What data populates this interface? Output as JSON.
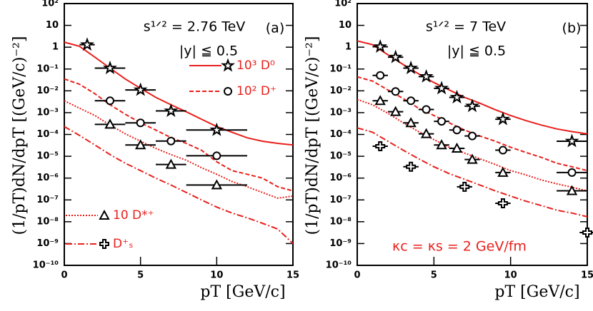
{
  "chart_data": [
    {
      "type": "line",
      "ylog": true,
      "xlabel": "pT [GeV/c]",
      "ylabel": "(1/pT)dN/dpT [(GeV/c)⁻²]",
      "annotations": [
        "s¹ᐟ² = 2.76 TeV",
        "|y| ≦ 0.5",
        "(a)"
      ],
      "xlim": [
        0,
        15
      ],
      "xticks": [
        0,
        5,
        10,
        15
      ],
      "ylim": [
        1e-10,
        100
      ],
      "yticks": [
        {
          "value": 100,
          "label": "10²"
        },
        10,
        1,
        {
          "value": 0.1,
          "label": "10⁻¹"
        },
        {
          "value": 0.01,
          "label": "10⁻²"
        },
        {
          "value": 0.001,
          "label": "10⁻³"
        },
        {
          "value": 0.0001,
          "label": "10⁻⁴"
        },
        {
          "value": 1e-05,
          "label": "10⁻⁵"
        },
        {
          "value": 1e-06,
          "label": "10⁻⁶"
        },
        {
          "value": 1e-07,
          "label": "10⁻⁷"
        },
        {
          "value": 1e-08,
          "label": "10⁻⁸"
        },
        {
          "value": 1e-09,
          "label": "10⁻⁹"
        },
        {
          "value": 1e-10,
          "label": "10⁻¹⁰"
        }
      ],
      "series": [
        {
          "name": "10³ D⁰",
          "color": "#e8201c",
          "marker_color": "#000000",
          "style": "solid",
          "marker": "star",
          "x": [
            0,
            1,
            2,
            3,
            4,
            5,
            6,
            7,
            8,
            9,
            10,
            11,
            12,
            13,
            14,
            15
          ],
          "values": [
            1.7,
            1.1,
            0.35,
            0.11,
            0.035,
            0.013,
            0.005,
            0.0023,
            0.0011,
            0.0005,
            0.00023,
            0.000126,
            7e-05,
            4.9e-05,
            3.9e-05,
            3.3e-05
          ],
          "points_x": [
            1.5,
            3,
            5,
            7,
            10
          ],
          "points_values": [
            1.3,
            0.11,
            0.011,
            0.0012,
            0.00016
          ],
          "points_xerr": [
            0.5,
            1,
            1,
            1,
            2
          ]
        },
        {
          "name": "10² D⁺",
          "color": "#e8201c",
          "marker_color": "#000000",
          "style": "dashed",
          "marker": "circle",
          "x": [
            0,
            1,
            2,
            3,
            4,
            5,
            6,
            7,
            8,
            9,
            10,
            11,
            12,
            13,
            14,
            15
          ],
          "values": [
            0.035,
            0.02,
            0.0074,
            0.0023,
            0.00085,
            0.00034,
            0.00016,
            7.2e-05,
            3.9e-05,
            1.9e-05,
            5.6e-06,
            2.2e-06,
            1.5e-06,
            1e-06,
            4e-07,
            2.6e-07
          ],
          "points_x": [
            3,
            5,
            7,
            10
          ],
          "points_values": [
            0.0035,
            0.00034,
            5e-05,
            1.05e-05
          ],
          "points_xerr": [
            1,
            1,
            1,
            2
          ]
        },
        {
          "name": "10 D*⁺",
          "color": "#e8201c",
          "marker_color": "#000000",
          "style": "dotted",
          "marker": "triangle",
          "x": [
            0,
            1,
            2,
            3,
            4,
            5,
            6,
            7,
            8,
            9,
            10,
            11,
            12,
            13,
            14,
            15
          ],
          "values": [
            0.0035,
            0.0016,
            0.00074,
            0.00027,
            0.000107,
            4.9e-05,
            2.3e-05,
            1.2e-05,
            6.6e-06,
            3e-06,
            1.5e-06,
            7e-07,
            4e-07,
            2.2e-07,
            1.2e-07,
            1.5e-07
          ],
          "points_x": [
            3,
            5,
            7,
            10
          ],
          "points_values": [
            0.00029,
            3.3e-05,
            4.2e-06,
            4.8e-07
          ],
          "points_xerr": [
            1,
            1,
            1,
            2
          ]
        },
        {
          "name": "D⁺ₛ",
          "color": "#e8201c",
          "marker_color": "#000000",
          "style": "dashdot",
          "marker": "cross",
          "x": [
            0,
            1,
            2,
            3,
            4,
            5,
            6,
            7,
            8,
            9,
            10,
            11,
            12,
            13,
            14,
            15
          ],
          "values": [
            0.00023,
            9e-05,
            3.3e-05,
            1.2e-05,
            4.8e-06,
            2.2e-06,
            1e-06,
            4.8e-07,
            2.2e-07,
            1e-07,
            4.7e-08,
            2.5e-08,
            1.5e-08,
            8.5e-09,
            4.6e-09,
            1e-09
          ],
          "points_x": [],
          "points_values": [],
          "points_xerr": []
        }
      ]
    },
    {
      "type": "line",
      "ylog": true,
      "xlabel": "pT [GeV/c]",
      "ylabel": "(1/pT)dN/dpT [(GeV/c)⁻²]",
      "annotations": [
        "s¹ᐟ² = 7 TeV",
        "|y| ≦ 0.5",
        "(b)",
        "κc = κs = 2 GeV/fm"
      ],
      "xlim": [
        0,
        15
      ],
      "xticks": [
        0,
        5,
        10,
        15
      ],
      "ylim": [
        1e-10,
        100
      ],
      "yticks": [
        {
          "value": 100,
          "label": "10²"
        },
        10,
        1,
        {
          "value": 0.1,
          "label": "10⁻¹"
        },
        {
          "value": 0.01,
          "label": "10⁻²"
        },
        {
          "value": 0.001,
          "label": "10⁻³"
        },
        {
          "value": 0.0001,
          "label": "10⁻⁴"
        },
        {
          "value": 1e-05,
          "label": "10⁻⁵"
        },
        {
          "value": 1e-06,
          "label": "10⁻⁶"
        },
        {
          "value": 1e-07,
          "label": "10⁻⁷"
        },
        {
          "value": 1e-08,
          "label": "10⁻⁸"
        },
        {
          "value": 1e-09,
          "label": "10⁻⁹"
        },
        {
          "value": 1e-10,
          "label": "10⁻¹⁰"
        }
      ],
      "series": [
        {
          "color": "#e8201c",
          "marker_color": "#000000",
          "style": "solid",
          "marker": "star",
          "x": [
            0,
            1,
            2,
            3,
            4,
            5,
            6,
            7,
            8,
            9,
            10,
            11,
            12,
            13,
            14,
            15
          ],
          "values": [
            1.95,
            1.3,
            0.45,
            0.16,
            0.06,
            0.024,
            0.011,
            0.005,
            0.0027,
            0.00136,
            0.00074,
            0.00043,
            0.00027,
            0.00018,
            0.000135,
            0.000107
          ],
          "points_x": [
            1.5,
            2.5,
            3.5,
            4.5,
            5.5,
            6.5,
            7.5,
            9.5,
            14
          ],
          "points_values": [
            1.05,
            0.35,
            0.11,
            0.045,
            0.013,
            0.005,
            0.002,
            0.0005,
            4.9e-05
          ],
          "points_xerr": [
            0.5,
            0.5,
            0.5,
            0.5,
            0.5,
            0.5,
            0.5,
            0.5,
            1
          ]
        },
        {
          "color": "#e8201c",
          "marker_color": "#000000",
          "style": "dashed",
          "marker": "circle",
          "x": [
            0,
            1,
            2,
            3,
            4,
            5,
            6,
            7,
            8,
            9,
            10,
            11,
            12,
            13,
            14,
            15
          ],
          "values": [
            0.044,
            0.028,
            0.011,
            0.0044,
            0.0016,
            0.00074,
            0.00034,
            0.00016,
            8.5e-05,
            4.9e-05,
            2.6e-05,
            1.5e-05,
            8.9e-06,
            4.8e-06,
            3.3e-06,
            2.2e-06
          ],
          "points_x": [
            1.5,
            2.5,
            3.5,
            4.5,
            5.5,
            6.5,
            7.5,
            9.5,
            14
          ],
          "points_values": [
            0.051,
            0.0093,
            0.0035,
            0.0014,
            0.0004,
            0.00016,
            8.5e-05,
            1.9e-05,
            1.8e-06
          ],
          "points_xerr": [
            0.5,
            0.5,
            0.5,
            0.5,
            0.5,
            0.5,
            0.5,
            0.5,
            1
          ]
        },
        {
          "color": "#e8201c",
          "marker_color": "#000000",
          "style": "dotted",
          "marker": "triangle",
          "x": [
            0,
            1,
            2,
            3,
            4,
            5,
            6,
            7,
            8,
            9,
            10,
            11,
            12,
            13,
            14,
            15
          ],
          "values": [
            0.004,
            0.0023,
            0.00093,
            0.00034,
            0.000135,
            5.8e-05,
            2.6e-05,
            1.4e-05,
            7.7e-06,
            4.2e-06,
            2.2e-06,
            1.4e-06,
            8.2e-07,
            5.5e-07,
            3.8e-07,
            2.6e-07
          ],
          "points_x": [
            1.5,
            2.5,
            3.5,
            4.5,
            5.5,
            6.5,
            7.5,
            9.5,
            14
          ],
          "points_values": [
            0.0035,
            0.0011,
            0.00034,
            0.000107,
            3.3e-05,
            2.3e-05,
            7.1e-06,
            1.8e-06,
            2.6e-07
          ],
          "points_xerr": [
            0.5,
            0.5,
            0.5,
            0.5,
            0.5,
            0.5,
            0.5,
            0.5,
            1
          ]
        },
        {
          "color": "#e8201c",
          "marker_color": "#000000",
          "style": "dashdot",
          "marker": "cross",
          "x": [
            0,
            1,
            2,
            3,
            4,
            5,
            6,
            7,
            8,
            9,
            10,
            11,
            12,
            13,
            14,
            15
          ],
          "values": [
            0.0002,
            0.000126,
            4.9e-05,
            1.9e-05,
            7.7e-06,
            3.3e-06,
            1.6e-06,
            8.8e-07,
            4.8e-07,
            2.6e-07,
            1.5e-07,
            8.7e-08,
            5.5e-08,
            3.4e-08,
            2.5e-08,
            1.7e-08
          ],
          "points_x": [
            1.5,
            3.5,
            7,
            9.5,
            15
          ],
          "points_values": [
            2.9e-05,
            3.3e-06,
            4e-07,
            7e-08,
            3.2e-09
          ],
          "points_xerr": [
            0.5,
            0.5,
            0.5,
            0.5,
            0.5
          ]
        }
      ]
    }
  ]
}
